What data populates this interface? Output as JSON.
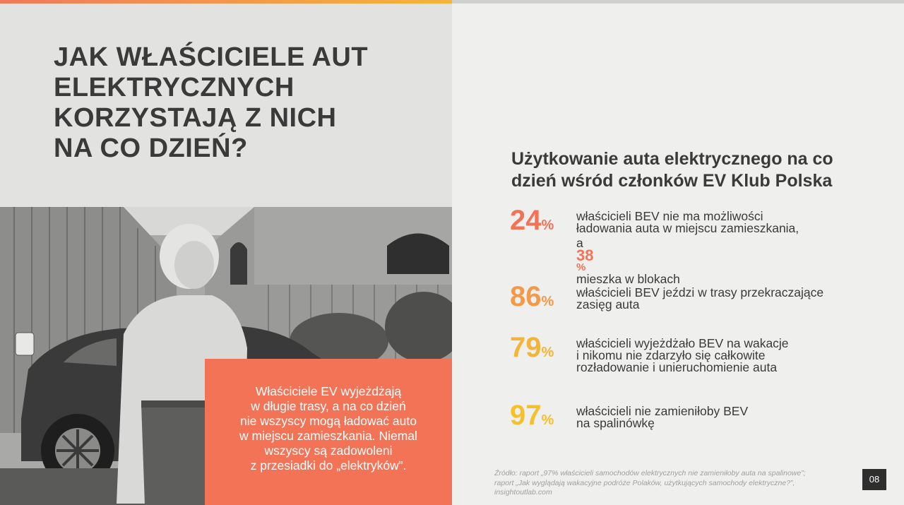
{
  "colors": {
    "coral": "#f37357",
    "orange": "#f29a4a",
    "amber": "#f4b43a",
    "yellow": "#f6c02a",
    "dark_text": "#3a3a3a"
  },
  "title_lines": [
    "JAK WŁAŚCICIELE AUT",
    "ELEKTRYCZNYCH",
    "KORZYSTAJĄ Z NICH",
    "NA CO DZIEŃ?"
  ],
  "photo": {
    "icon": "woman-with-electric-car-photo"
  },
  "callout_lines": [
    "Właściciele EV wyjeżdżają",
    "w długie trasy, a na co dzień",
    "nie wszyscy mogą ładować auto",
    "w miejscu zamieszkania. Niemal",
    "wszyscy są zadowoleni",
    "z przesiadki do „elektryków”."
  ],
  "heading_lines": [
    "Użytkowanie auta elektrycznego na co",
    "dzień wśród członków EV Klub Polska"
  ],
  "stats": [
    {
      "value": "24",
      "unit": "%",
      "color": "#f37357",
      "lines": [
        "właścicieli BEV nie ma możliwości",
        "ładowania auta w miejscu zamieszkania,"
      ],
      "extra_prefix": "a ",
      "extra_value": "38",
      "extra_unit": "%",
      "extra_suffix": " mieszka w blokach"
    },
    {
      "value": "86",
      "unit": "%",
      "color": "#f29a4a",
      "lines": [
        "właścicieli BEV jeździ w trasy przekraczające",
        "zasięg auta"
      ]
    },
    {
      "value": "79",
      "unit": "%",
      "color": "#f4b43a",
      "lines": [
        "właścicieli wyjeżdżało BEV na wakacje",
        "i nikomu nie zdarzyło się całkowite",
        "rozładowanie i unieruchomienie auta"
      ]
    },
    {
      "value": "97",
      "unit": "%",
      "color": "#f6c02a",
      "lines": [
        "właścicieli nie zamieniłoby BEV",
        "na spalinówkę"
      ]
    }
  ],
  "source_lines": [
    "Źródło: raport „97% właścicieli samochodów elektrycznych nie zamieniłoby auta na spalinowe”;",
    "raport „Jak wyglądają wakacyjne podróże Polaków, użytkujących samochody elektryczne?”,",
    "insightoutlab.com"
  ],
  "page_number": "08"
}
